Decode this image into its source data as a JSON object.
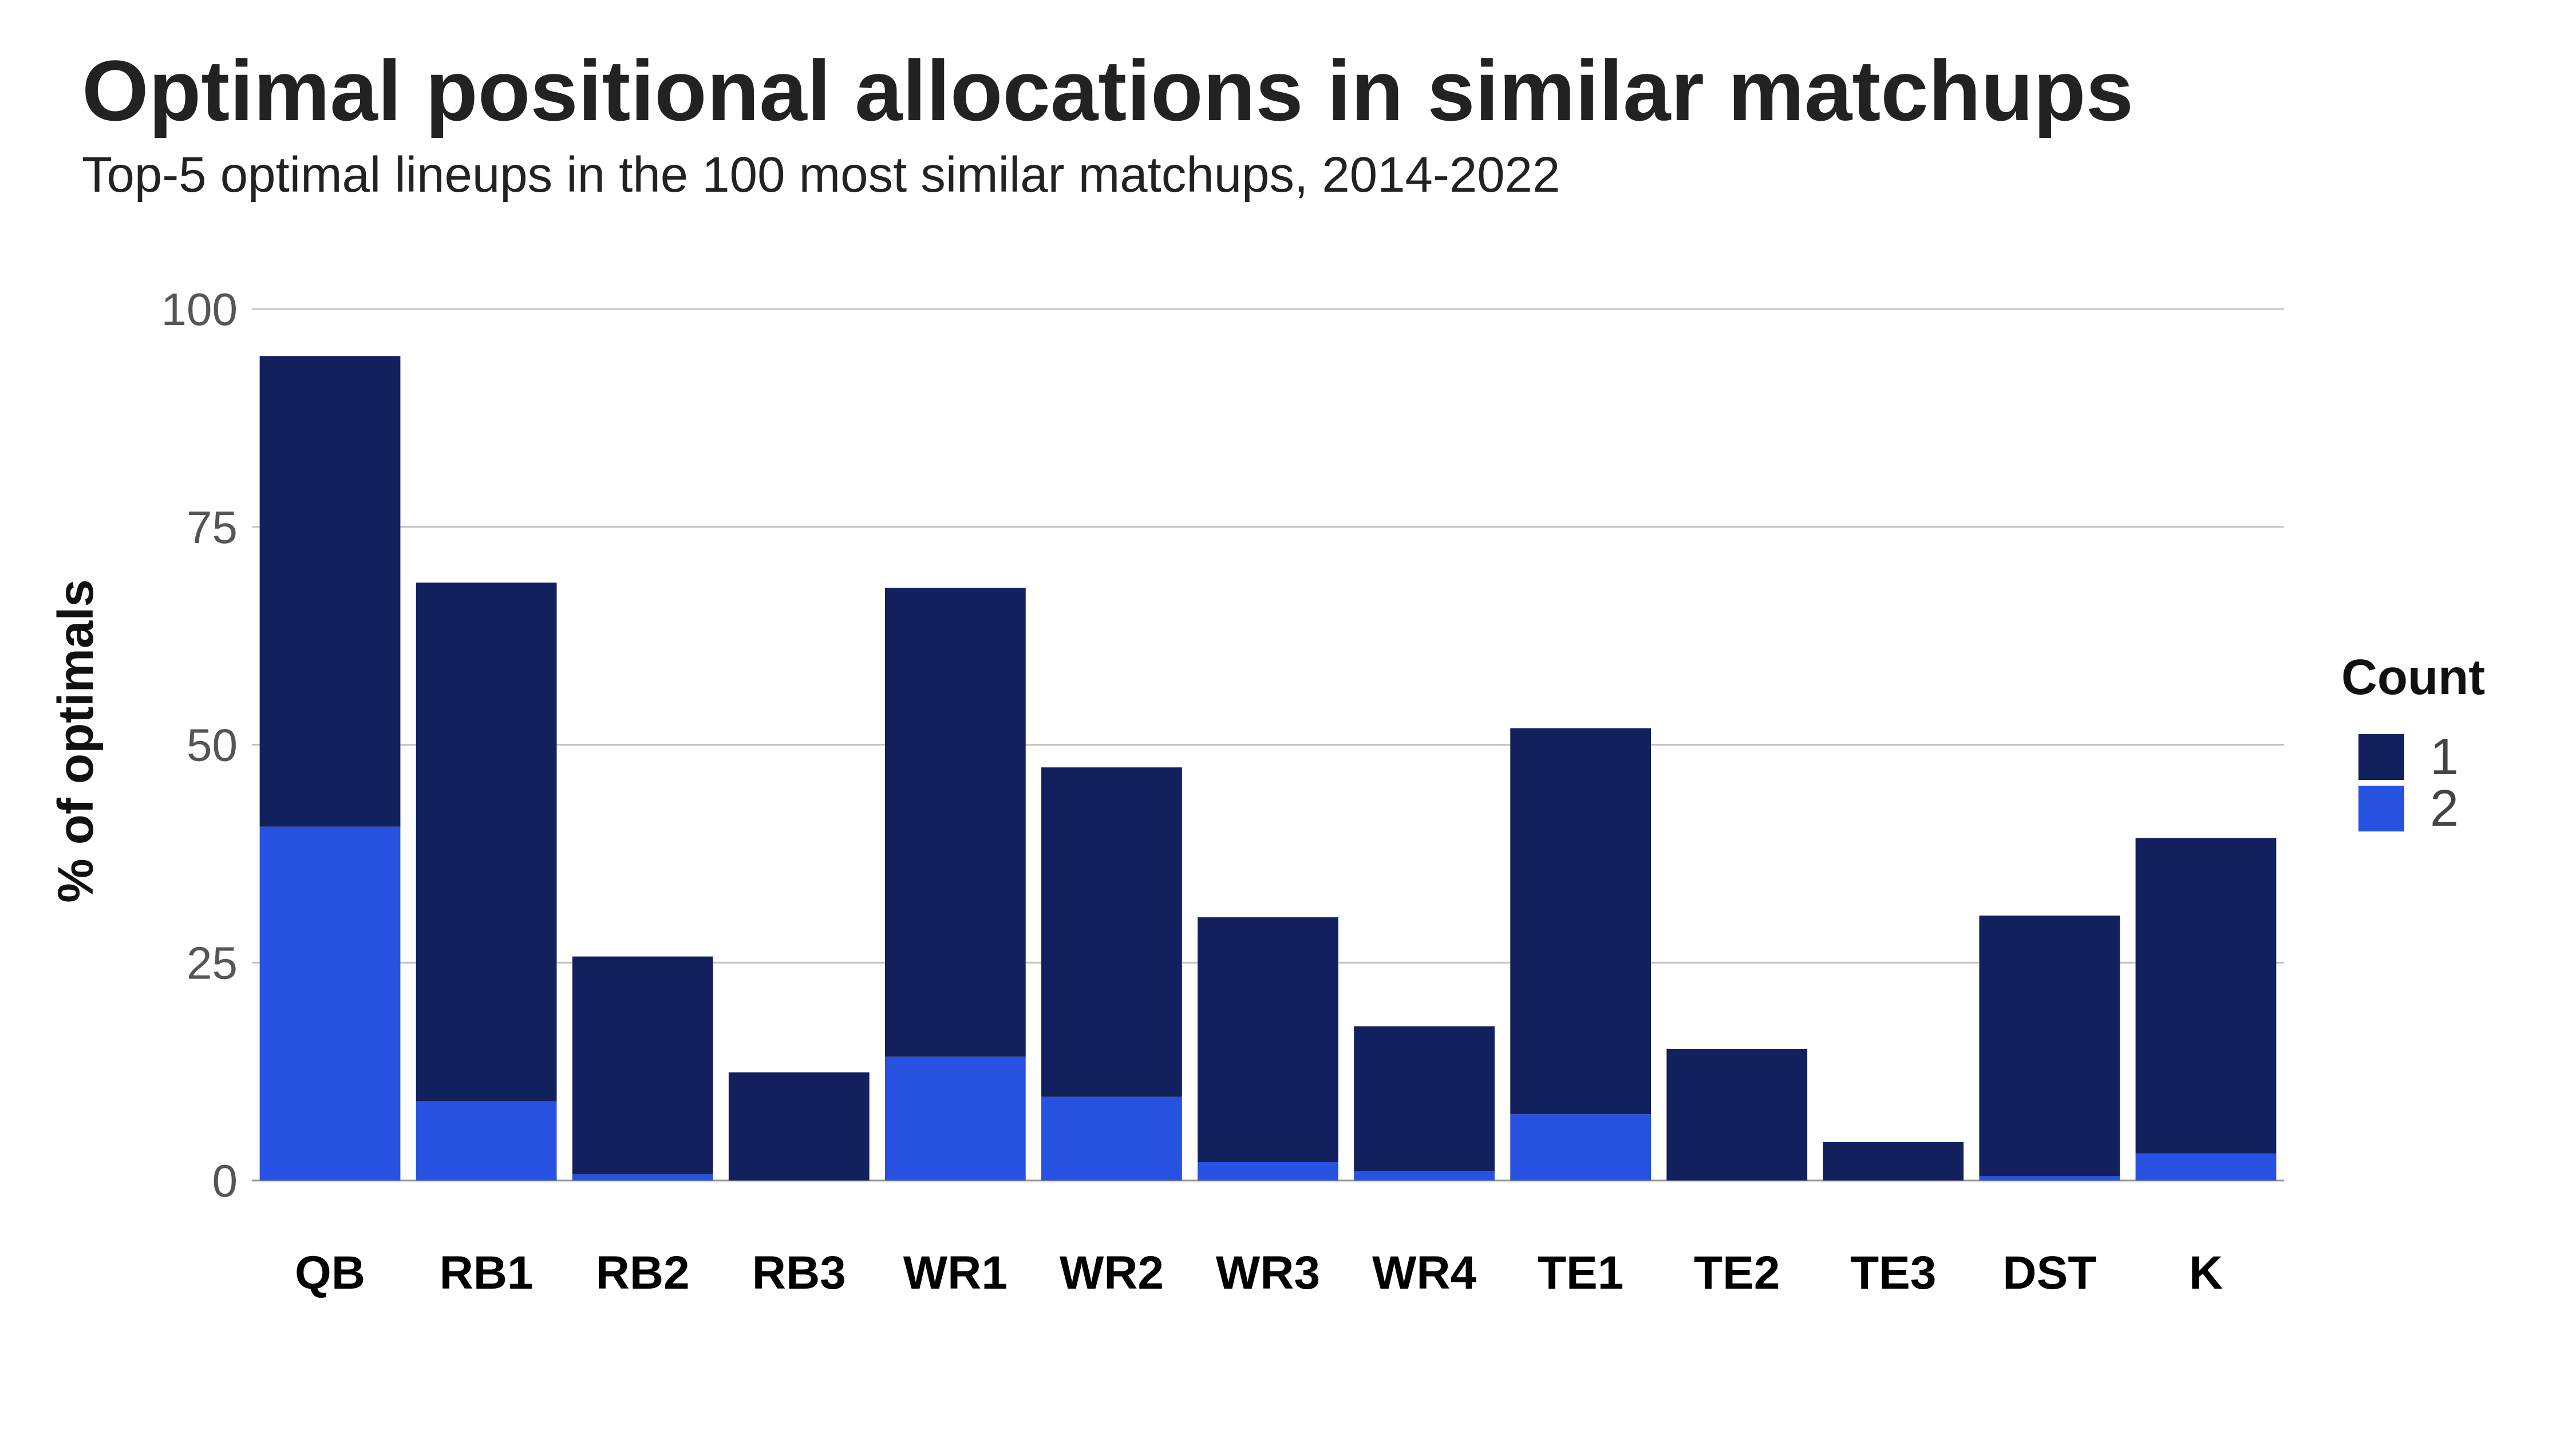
{
  "chart_data": {
    "type": "bar",
    "stacked": true,
    "title": "Optimal positional allocations in similar matchups",
    "subtitle": "Top-5 optimal lineups in the 100 most similar matchups, 2014-2022",
    "xlabel": "",
    "ylabel": "% of optimals",
    "ylim": [
      0,
      100
    ],
    "yticks": [
      0,
      25,
      50,
      75,
      100
    ],
    "grid": "horizontal",
    "legend": {
      "title": "Count",
      "position": "right"
    },
    "categories": [
      "QB",
      "RB1",
      "RB2",
      "RB3",
      "WR1",
      "WR2",
      "WR3",
      "WR4",
      "TE1",
      "TE2",
      "TE3",
      "DST",
      "K"
    ],
    "series": [
      {
        "name": "1",
        "color": "#12205e",
        "values": [
          54,
          59.5,
          25,
          12.4,
          53.8,
          37.8,
          28.1,
          16.6,
          44.3,
          15.1,
          4.4,
          29.9,
          36.2
        ]
      },
      {
        "name": "2",
        "color": "#2751e0",
        "values": [
          40.6,
          9.1,
          0.7,
          0,
          14.2,
          9.6,
          2.1,
          1.1,
          7.6,
          0,
          0,
          0.5,
          3.1
        ]
      }
    ]
  }
}
